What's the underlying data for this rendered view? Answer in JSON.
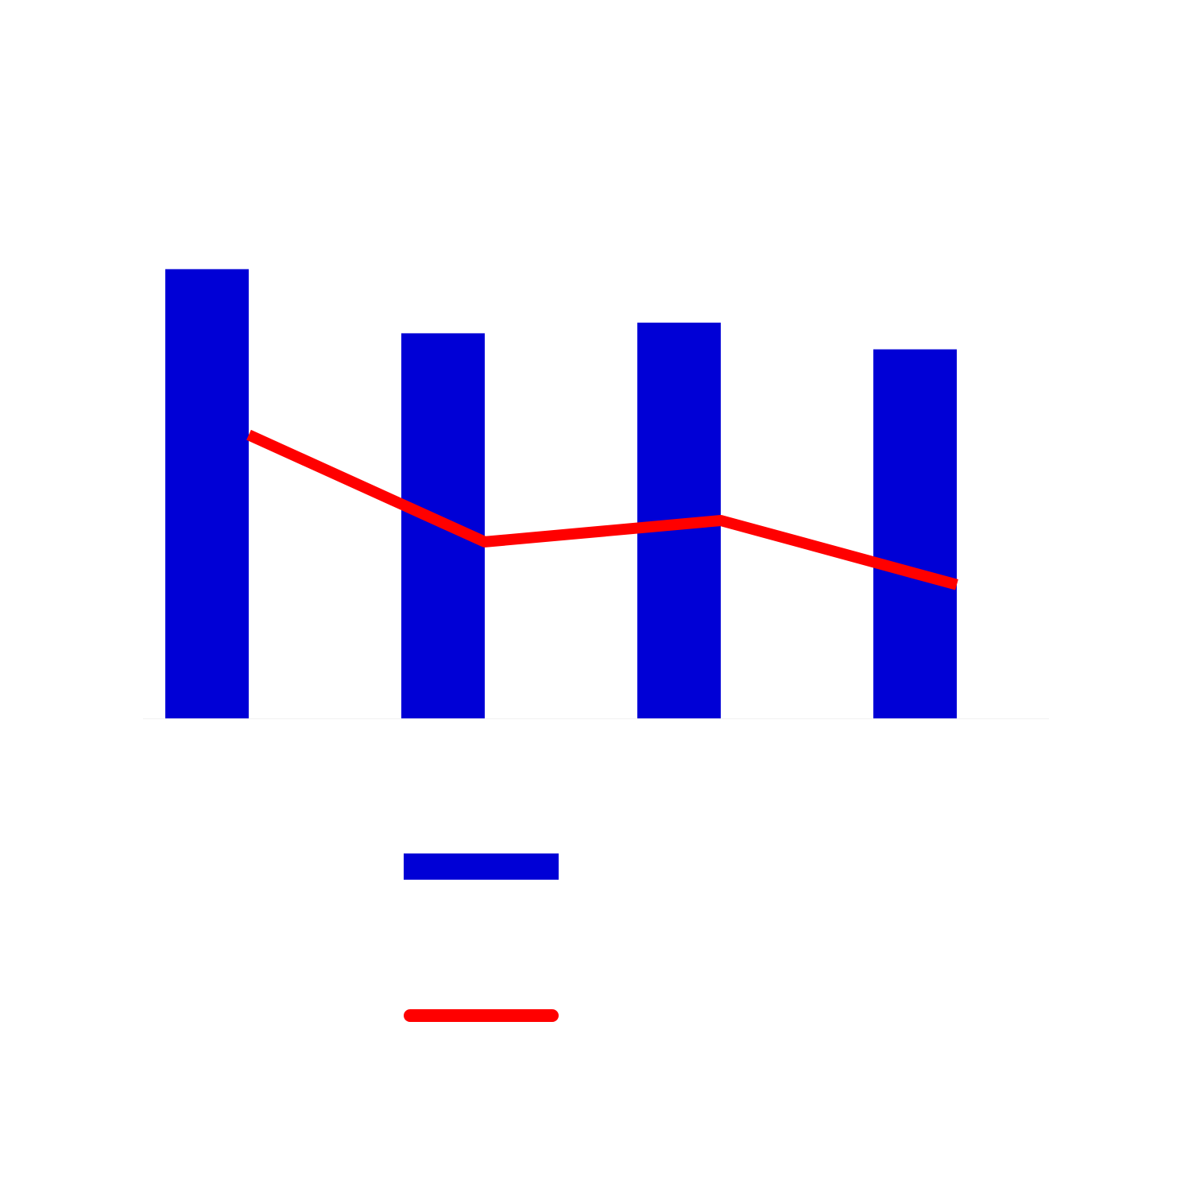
{
  "chart_data": {
    "type": "bar",
    "title": "",
    "xlabel": "",
    "ylabel": "",
    "ylim": [
      0,
      100
    ],
    "grid": false,
    "legend_position": "bottom",
    "categories": [
      "",
      "",
      "",
      ""
    ],
    "series": [
      {
        "type": "bar",
        "color": "#0000d6",
        "values": [
          84,
          72,
          74,
          69
        ]
      },
      {
        "type": "line",
        "color": "#ff0000",
        "values": [
          53,
          33,
          37,
          25
        ]
      }
    ]
  }
}
